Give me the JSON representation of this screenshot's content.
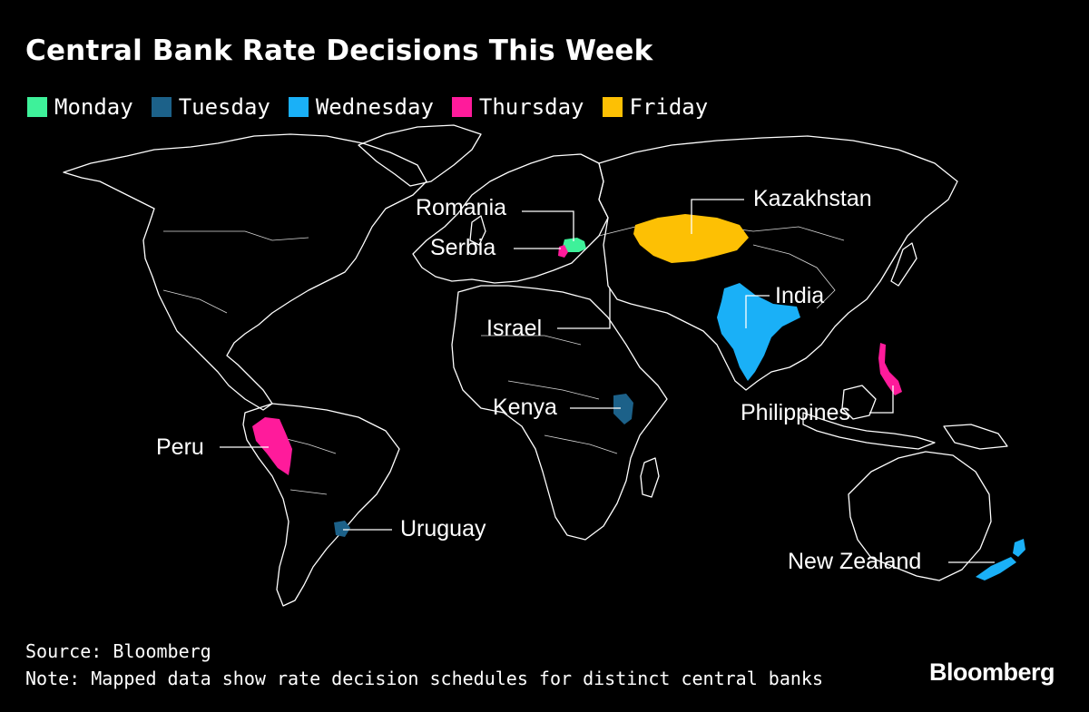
{
  "title": "Central Bank Rate Decisions This Week",
  "legend": [
    {
      "label": "Monday",
      "color": "#3ef19a"
    },
    {
      "label": "Tuesday",
      "color": "#1c6189"
    },
    {
      "label": "Wednesday",
      "color": "#1ab0f7"
    },
    {
      "label": "Thursday",
      "color": "#ff1b9b"
    },
    {
      "label": "Friday",
      "color": "#fdc004"
    }
  ],
  "countries": {
    "romania": {
      "name": "Romania",
      "day": "Monday"
    },
    "serbia": {
      "name": "Serbia",
      "day": "Thursday"
    },
    "kazakhstan": {
      "name": "Kazakhstan",
      "day": "Friday"
    },
    "india": {
      "name": "India",
      "day": "Wednesday"
    },
    "israel": {
      "name": "Israel",
      "day": ""
    },
    "kenya": {
      "name": "Kenya",
      "day": "Tuesday"
    },
    "philippines": {
      "name": "Philippines",
      "day": "Thursday"
    },
    "peru": {
      "name": "Peru",
      "day": "Thursday"
    },
    "uruguay": {
      "name": "Uruguay",
      "day": "Tuesday"
    },
    "new_zealand": {
      "name": "New Zealand",
      "day": "Wednesday"
    }
  },
  "footer": {
    "source": "Source: Bloomberg",
    "note": "Note: Mapped data show rate decision schedules for distinct central banks"
  },
  "brand": "Bloomberg"
}
